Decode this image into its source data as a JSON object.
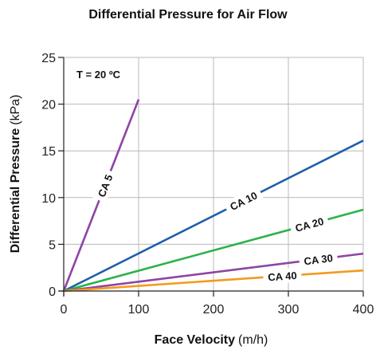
{
  "chart_data": {
    "type": "line",
    "title": "Differential Pressure for Air Flow",
    "xlabel": {
      "main": "Face Velocity",
      "unit": "(m/h)"
    },
    "ylabel": {
      "main": "Differential Pressure",
      "unit": "(kPa)"
    },
    "xlim": [
      0,
      400
    ],
    "ylim": [
      0,
      25
    ],
    "xticks": [
      0,
      100,
      200,
      300,
      400
    ],
    "yticks": [
      0,
      5,
      10,
      15,
      20,
      25
    ],
    "grid": true,
    "annotation": "T = 20 ºC",
    "series": [
      {
        "name": "CA 5",
        "color": "#8e44a5",
        "x": [
          0,
          100
        ],
        "y": [
          0,
          20.5
        ]
      },
      {
        "name": "CA 10",
        "color": "#1f5fa9",
        "x": [
          0,
          400
        ],
        "y": [
          0,
          16.1
        ]
      },
      {
        "name": "CA 20",
        "color": "#2ab34a",
        "x": [
          0,
          400
        ],
        "y": [
          0,
          8.7
        ]
      },
      {
        "name": "CA 30",
        "color": "#8e44a5",
        "x": [
          0,
          400
        ],
        "y": [
          0,
          4.0
        ]
      },
      {
        "name": "CA 40",
        "color": "#f39a1e",
        "x": [
          0,
          400
        ],
        "y": [
          0,
          2.2
        ]
      }
    ]
  }
}
